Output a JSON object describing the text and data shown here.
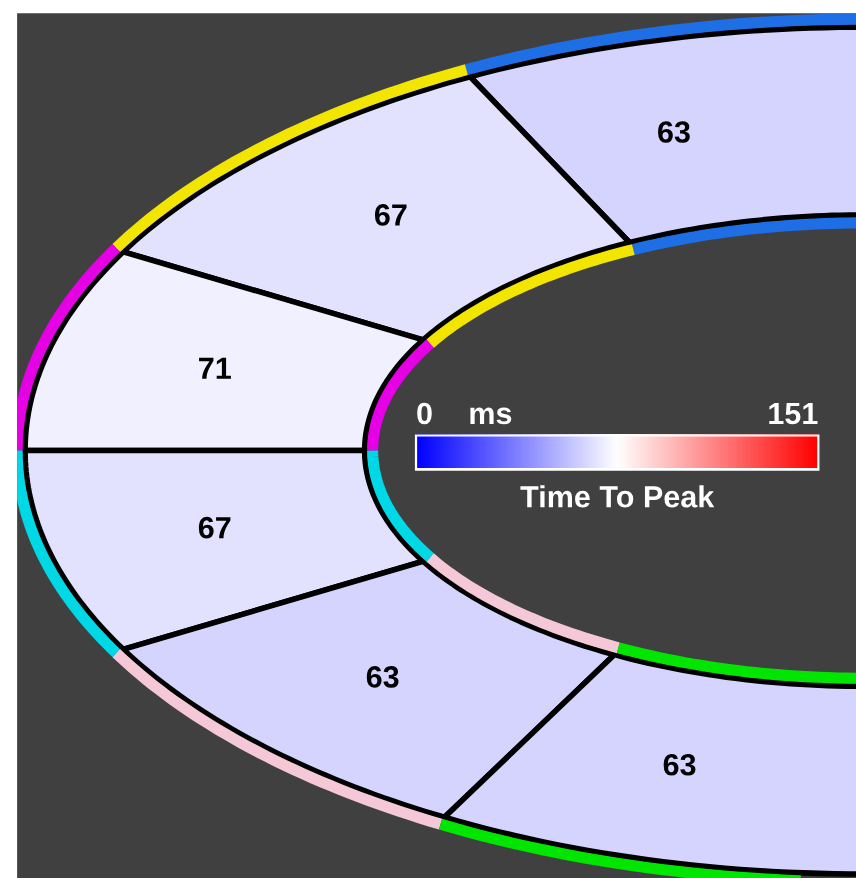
{
  "chart_data": {
    "type": "other",
    "categories": [
      null,
      null,
      null,
      null,
      null,
      null
    ],
    "values": [
      63,
      67,
      71,
      67,
      63,
      63
    ],
    "colors": [
      "#d4d4ff",
      "#e2e2ff",
      "#f0f0ff",
      "#e2e2ff",
      "#d4d4ff",
      "#d4d4ff"
    ],
    "data_labels": true,
    "clabel": "Time To Peak",
    "annotations": [
      "0",
      "ms",
      "151"
    ]
  }
}
